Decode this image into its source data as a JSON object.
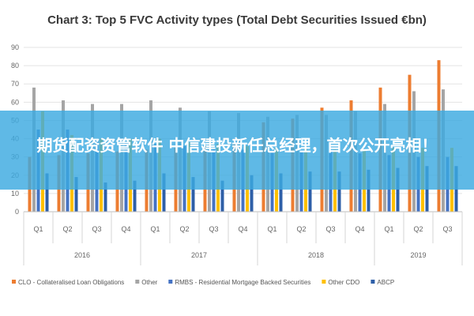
{
  "chart_data": {
    "type": "bar",
    "title": "Chart 3: Top 5 FVC Activity types (Total Debt Securities Issued €bn)",
    "ylim": [
      0,
      90
    ],
    "yticks": [
      0,
      10,
      20,
      30,
      40,
      50,
      60,
      70,
      80,
      90
    ],
    "grid": true,
    "legend_position": "bottom",
    "categories": [
      "Q1",
      "Q2",
      "Q3",
      "Q4",
      "Q1",
      "Q2",
      "Q3",
      "Q4",
      "Q1",
      "Q2",
      "Q3",
      "Q4",
      "Q1",
      "Q2",
      "Q3"
    ],
    "years": [
      {
        "label": "2016",
        "span": 4
      },
      {
        "label": "2017",
        "span": 4
      },
      {
        "label": "2018",
        "span": 4
      },
      {
        "label": "2019",
        "span": 3
      }
    ],
    "series": [
      {
        "name": "CLO - Collateralised Loan Obligations",
        "color": "#ED7D31",
        "values": [
          30,
          31,
          32,
          33,
          34,
          35,
          36,
          37,
          49,
          51,
          57,
          61,
          68,
          75,
          83
        ]
      },
      {
        "name": "Other",
        "color": "#A5A5A5",
        "values": [
          68,
          61,
          59,
          59,
          61,
          57,
          55,
          54,
          52,
          53,
          53,
          55,
          59,
          66,
          67
        ]
      },
      {
        "name": "RMBS - Residential Mortgage Backed Securities",
        "color": "#4472C4",
        "values": [
          45,
          45,
          39,
          38,
          37,
          36,
          35,
          34,
          33,
          33,
          33,
          32,
          31,
          30,
          30
        ]
      },
      {
        "name": "Other CDO",
        "color": "#FFC000",
        "values": [
          55,
          42,
          40,
          40,
          40,
          38,
          37,
          36,
          35,
          35,
          34,
          34,
          35,
          35,
          35
        ]
      },
      {
        "name": "ABCP",
        "color": "#2E5FA8",
        "values": [
          21,
          19,
          16,
          17,
          21,
          19,
          17,
          20,
          21,
          22,
          22,
          23,
          24,
          25,
          25
        ]
      }
    ]
  },
  "banner": {
    "text": "期货配资资管软件 中信建投新任总经理，首次公开亮相！"
  }
}
